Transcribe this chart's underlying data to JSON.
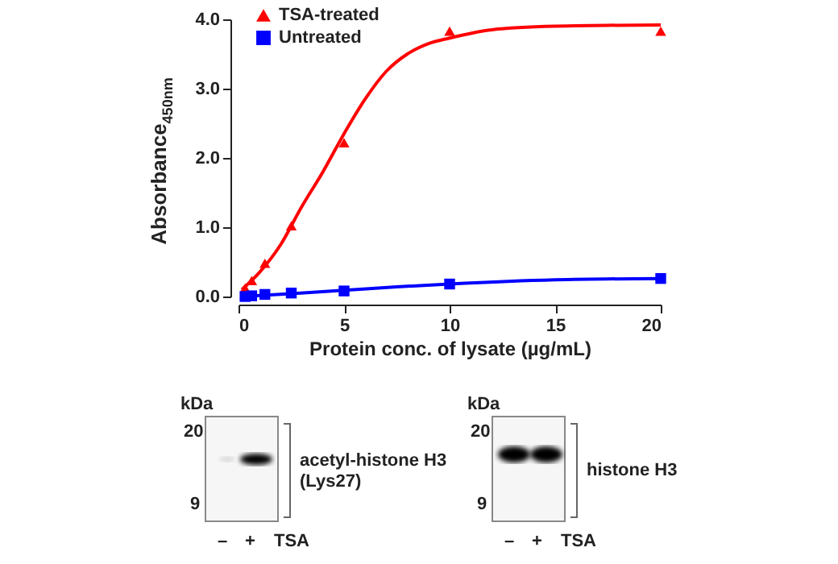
{
  "chart_data": {
    "type": "scatter",
    "xlabel": "Protein conc. of lysate (µg/mL)",
    "ylabel": "Absorbance$_{450nm}$",
    "xlim": [
      0,
      20
    ],
    "xticks": [
      0,
      5,
      10,
      15,
      20
    ],
    "ylim": [
      0,
      4
    ],
    "yticks": [
      {
        "value": 0,
        "label": "0.0"
      },
      {
        "value": 1,
        "label": "1.0"
      },
      {
        "value": 2,
        "label": "2.0"
      },
      {
        "value": 3,
        "label": "3.0"
      },
      {
        "value": 4,
        "label": "4.0"
      }
    ],
    "grid": false,
    "legend": "top left",
    "series": [
      {
        "name": "TSA-treated",
        "color": "#ff0000",
        "marker": "triangle",
        "x": [
          0.31,
          0.625,
          1.25,
          2.5,
          5,
          10,
          20
        ],
        "values": [
          0.12,
          0.23,
          0.48,
          1.02,
          2.22,
          3.83,
          3.83
        ]
      },
      {
        "name": "Untreated",
        "color": "#0000ff",
        "marker": "square",
        "x": [
          0.31,
          0.625,
          1.25,
          2.5,
          5,
          10,
          20
        ],
        "values": [
          0.0,
          0.01,
          0.03,
          0.05,
          0.08,
          0.18,
          0.26
        ]
      },
      {
        "type": "line",
        "color": "#ff0000",
        "x": [
          0.16,
          1,
          2,
          3,
          4,
          5,
          6,
          7,
          8,
          9,
          10,
          12,
          15,
          20
        ],
        "values": [
          0.1,
          0.35,
          0.75,
          1.3,
          1.8,
          2.35,
          2.85,
          3.25,
          3.5,
          3.65,
          3.73,
          3.85,
          3.9,
          3.92
        ]
      },
      {
        "type": "line",
        "color": "#0000ff",
        "x": [
          0.16,
          2.5,
          5,
          7.5,
          10,
          15,
          20
        ],
        "values": [
          0.0,
          0.04,
          0.09,
          0.14,
          0.18,
          0.24,
          0.26
        ]
      }
    ],
    "annotations": [
      "kDa",
      "20",
      "9",
      "acetyl-histone H3 (Lys27)",
      "–",
      "+",
      "TSA",
      "kDa",
      "20",
      "9",
      "histone H3",
      "–",
      "+",
      "TSA"
    ]
  }
}
